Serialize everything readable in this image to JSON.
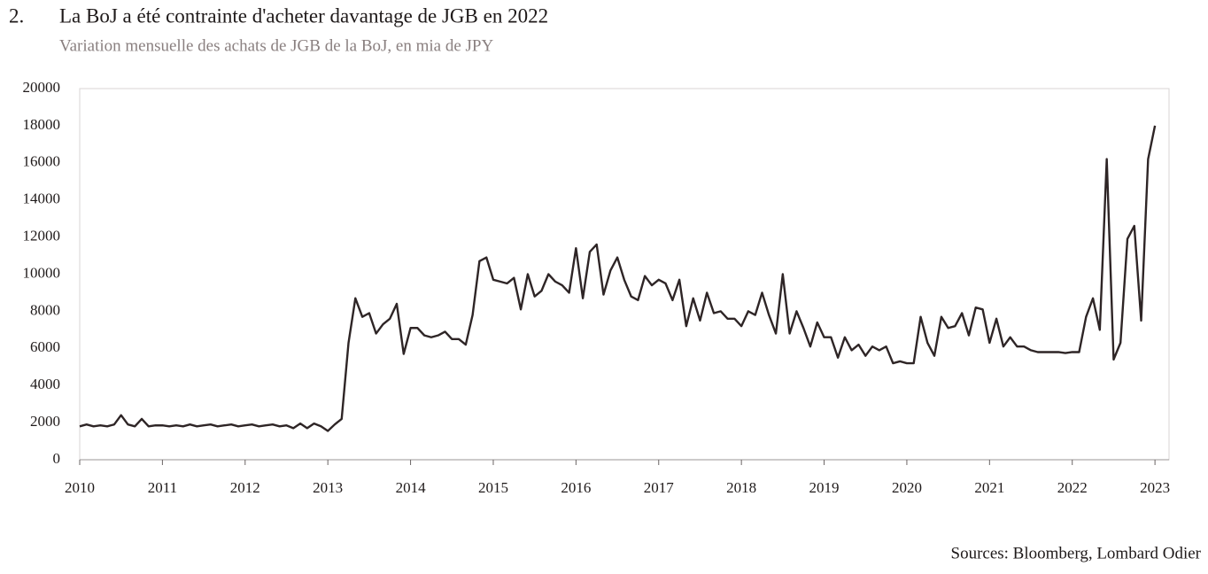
{
  "chart_data": {
    "type": "line",
    "number": "2.",
    "title": "La BoJ a été contrainte d'acheter davantage de JGB en 2022",
    "subtitle": "Variation mensuelle des achats de JGB de la BoJ, en mia de JPY",
    "source": "Sources: Bloomberg, Lombard Odier",
    "xlim": [
      2010,
      2023.17
    ],
    "xticks": [
      2010,
      2011,
      2012,
      2013,
      2014,
      2015,
      2016,
      2017,
      2018,
      2019,
      2020,
      2021,
      2022,
      2023
    ],
    "ylim": [
      0,
      20000
    ],
    "yticks": [
      0,
      2000,
      4000,
      6000,
      8000,
      10000,
      12000,
      14000,
      16000,
      18000,
      20000
    ],
    "grid": false,
    "x": [
      2010,
      2010.083,
      2010.167,
      2010.25,
      2010.333,
      2010.417,
      2010.5,
      2010.583,
      2010.667,
      2010.75,
      2010.833,
      2010.917,
      2011,
      2011.083,
      2011.167,
      2011.25,
      2011.333,
      2011.417,
      2011.5,
      2011.583,
      2011.667,
      2011.75,
      2011.833,
      2011.917,
      2012,
      2012.083,
      2012.167,
      2012.25,
      2012.333,
      2012.417,
      2012.5,
      2012.583,
      2012.667,
      2012.75,
      2012.833,
      2012.917,
      2013,
      2013.083,
      2013.167,
      2013.25,
      2013.333,
      2013.417,
      2013.5,
      2013.583,
      2013.667,
      2013.75,
      2013.833,
      2013.917,
      2014,
      2014.083,
      2014.167,
      2014.25,
      2014.333,
      2014.417,
      2014.5,
      2014.583,
      2014.667,
      2014.75,
      2014.833,
      2014.917,
      2015,
      2015.083,
      2015.167,
      2015.25,
      2015.333,
      2015.417,
      2015.5,
      2015.583,
      2015.667,
      2015.75,
      2015.833,
      2015.917,
      2016,
      2016.083,
      2016.167,
      2016.25,
      2016.333,
      2016.417,
      2016.5,
      2016.583,
      2016.667,
      2016.75,
      2016.833,
      2016.917,
      2017,
      2017.083,
      2017.167,
      2017.25,
      2017.333,
      2017.417,
      2017.5,
      2017.583,
      2017.667,
      2017.75,
      2017.833,
      2017.917,
      2018,
      2018.083,
      2018.167,
      2018.25,
      2018.333,
      2018.417,
      2018.5,
      2018.583,
      2018.667,
      2018.75,
      2018.833,
      2018.917,
      2019,
      2019.083,
      2019.167,
      2019.25,
      2019.333,
      2019.417,
      2019.5,
      2019.583,
      2019.667,
      2019.75,
      2019.833,
      2019.917,
      2020,
      2020.083,
      2020.167,
      2020.25,
      2020.333,
      2020.417,
      2020.5,
      2020.583,
      2020.667,
      2020.75,
      2020.833,
      2020.917,
      2021,
      2021.083,
      2021.167,
      2021.25,
      2021.333,
      2021.417,
      2021.5,
      2021.583,
      2021.667,
      2021.75,
      2021.833,
      2021.917,
      2022,
      2022.083,
      2022.167,
      2022.25,
      2022.333,
      2022.417,
      2022.5,
      2022.583,
      2022.667,
      2022.75,
      2022.833,
      2022.917,
      2023
    ],
    "series": [
      {
        "color": "#2e2526",
        "values": [
          1800,
          1900,
          1800,
          1850,
          1800,
          1900,
          2400,
          1900,
          1800,
          2200,
          1800,
          1850,
          1850,
          1800,
          1850,
          1800,
          1900,
          1800,
          1850,
          1900,
          1800,
          1850,
          1900,
          1800,
          1850,
          1900,
          1800,
          1850,
          1900,
          1800,
          1850,
          1700,
          1950,
          1700,
          1950,
          1800,
          1550,
          1900,
          2200,
          6300,
          8700,
          7700,
          7900,
          6800,
          7300,
          7600,
          8400,
          5700,
          7100,
          7100,
          6700,
          6600,
          6700,
          6900,
          6500,
          6500,
          6200,
          7800,
          10700,
          10900,
          9700,
          9600,
          9500,
          9800,
          8100,
          10000,
          8800,
          9100,
          10000,
          9600,
          9400,
          9000,
          11400,
          8700,
          11200,
          11600,
          8900,
          10200,
          10900,
          9700,
          8800,
          8600,
          9900,
          9400,
          9700,
          9500,
          8600,
          9700,
          7200,
          8700,
          7500,
          9000,
          7900,
          8000,
          7600,
          7600,
          7200,
          8000,
          7800,
          9000,
          7800,
          6800,
          10000,
          6800,
          8000,
          7100,
          6100,
          7400,
          6600,
          6600,
          5500,
          6600,
          5900,
          6200,
          5600,
          6100,
          5900,
          6100,
          5200,
          5300,
          5200,
          5200,
          7700,
          6300,
          5600,
          7700,
          7100,
          7200,
          7900,
          6700,
          8200,
          8100,
          6300,
          7600,
          6100,
          6600,
          6100,
          6100,
          5900,
          5800,
          5800,
          5800,
          5800,
          5750,
          5800,
          5800,
          7700,
          8700,
          7000,
          16200,
          5400,
          6300,
          11900,
          12600,
          7500,
          16200,
          18000
        ]
      }
    ]
  }
}
